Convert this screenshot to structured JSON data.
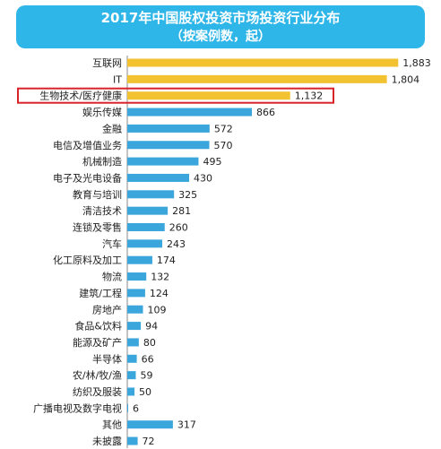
{
  "chart_data": {
    "type": "bar",
    "orientation": "horizontal",
    "title": "2017年中国股权投资市场投资行业分布",
    "subtitle": "（按案例数，起）",
    "xlabel": "",
    "ylabel": "",
    "xlim": [
      0,
      1900
    ],
    "grid": false,
    "categories": [
      "互联网",
      "IT",
      "生物技术/医疗健康",
      "娱乐传媒",
      "金融",
      "电信及增值业务",
      "机械制造",
      "电子及光电设备",
      "教育与培训",
      "清洁技术",
      "连锁及零售",
      "汽车",
      "化工原料及加工",
      "物流",
      "建筑/工程",
      "房地产",
      "食品&饮料",
      "能源及矿产",
      "半导体",
      "农/林/牧/渔",
      "纺织及服装",
      "广播电视及数字电视",
      "其他",
      "未披露"
    ],
    "values": [
      1883,
      1804,
      1132,
      866,
      572,
      570,
      495,
      430,
      325,
      281,
      260,
      243,
      174,
      132,
      124,
      109,
      94,
      80,
      66,
      59,
      50,
      6,
      317,
      72
    ],
    "value_labels": [
      "1,883",
      "1,804",
      "1,132",
      "866",
      "572",
      "570",
      "495",
      "430",
      "325",
      "281",
      "260",
      "243",
      "174",
      "132",
      "124",
      "109",
      "94",
      "80",
      "66",
      "59",
      "50",
      "6",
      "317",
      "72"
    ],
    "highlight_index": 2,
    "colors": {
      "top": "#f2c230",
      "rest": "#3aa6dc",
      "highlight_box": "#d9232a",
      "title_bg": "#2fb6e8"
    }
  }
}
